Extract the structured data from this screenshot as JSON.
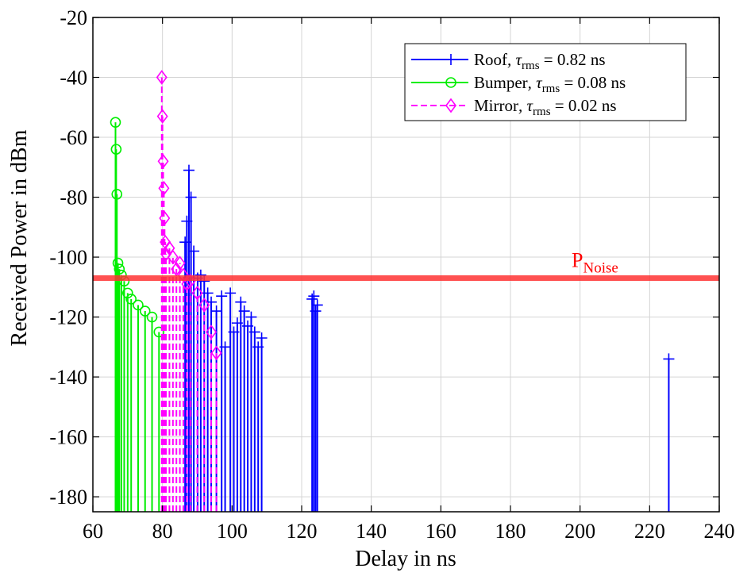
{
  "chart_data": {
    "type": "line",
    "xlabel": "Delay in ns",
    "ylabel": "Received Power in dBm",
    "xlim": [
      60,
      240
    ],
    "ylim": [
      -185,
      -20
    ],
    "xticks": [
      60,
      80,
      100,
      120,
      140,
      160,
      180,
      200,
      220,
      240
    ],
    "yticks": [
      -20,
      -40,
      -60,
      -80,
      -100,
      -120,
      -140,
      -160,
      -180
    ],
    "grid": true,
    "legend_position": "top-right",
    "series": [
      {
        "name": "Roof",
        "tau_label": "0.82 ns",
        "color": "#0000ff",
        "marker": "plus",
        "line_style": "solid",
        "x": [
          86.5,
          87.0,
          87.6,
          88.2,
          89.0,
          90.1,
          91.0,
          92.0,
          93.0,
          94.0,
          95.5,
          97.0,
          98.0,
          99.5,
          100.5,
          101.5,
          102.5,
          103.5,
          104.5,
          105.5,
          106.5,
          107.5,
          108.5,
          123.0,
          123.5,
          124.0,
          124.5,
          225.5
        ],
        "values": [
          -95,
          -88,
          -71,
          -80,
          -98,
          -107,
          -106,
          -108,
          -112,
          -115,
          -118,
          -113,
          -130,
          -112,
          -125,
          -122,
          -115,
          -118,
          -123,
          -120,
          -125,
          -130,
          -127,
          -114,
          -113,
          -118,
          -116,
          -134
        ]
      },
      {
        "name": "Bumper",
        "tau_label": "0.08 ns",
        "color": "#00ee00",
        "marker": "circle",
        "line_style": "solid",
        "x": [
          66.5,
          66.7,
          66.9,
          67.2,
          67.6,
          68.2,
          69.0,
          70.0,
          71.0,
          73.0,
          75.0,
          77.0,
          79.0
        ],
        "values": [
          -55,
          -64,
          -79,
          -102,
          -104,
          -106,
          -108,
          -112,
          -114,
          -116,
          -118,
          -120,
          -125
        ]
      },
      {
        "name": "Mirror",
        "tau_label": "0.02 ns",
        "color": "#ff00ff",
        "marker": "diamond",
        "line_style": "dashed",
        "x": [
          79.8,
          80.0,
          80.2,
          80.4,
          80.6,
          80.8,
          81.0,
          82.0,
          83.0,
          84.0,
          85.0,
          86.0,
          87.0,
          88.0,
          90.0,
          92.0,
          94.0,
          95.5
        ],
        "values": [
          -40,
          -53,
          -68,
          -77,
          -87,
          -95,
          -99,
          -97,
          -100,
          -104,
          -102,
          -106,
          -109,
          -108,
          -112,
          -116,
          -125,
          -132
        ]
      }
    ],
    "reference_line": {
      "label_main": "P",
      "label_sub": "Noise",
      "value": -107,
      "color": "#ff3333"
    }
  },
  "legend_rms": "rms"
}
